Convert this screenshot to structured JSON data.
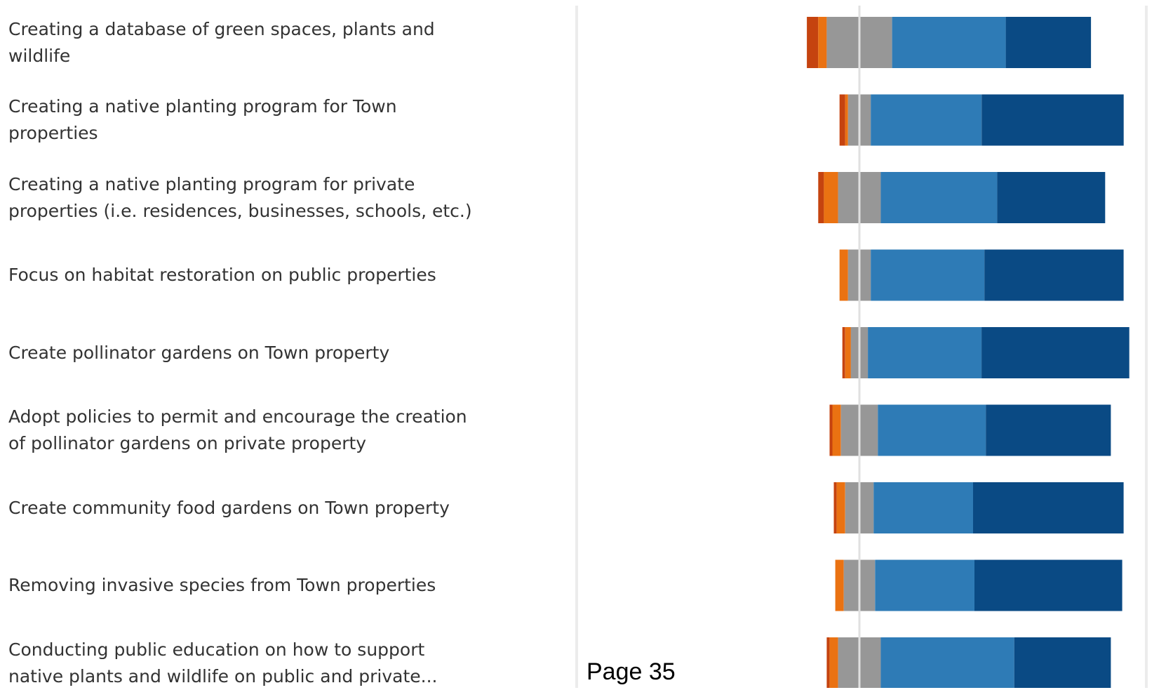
{
  "page": {
    "footer": "Page 35"
  },
  "chart_data": {
    "type": "bar",
    "orientation": "horizontal",
    "stacked": "diverging",
    "title": "",
    "xlabel": "",
    "ylabel": "",
    "grid": false,
    "legend": "none",
    "categories": [
      "Creating a database of green spaces, plants and wildlife",
      "Creating a native planting program for Town properties",
      "Creating a native planting program for private properties (i.e. residences, businesses, schools, etc.)",
      "Focus on habitat restoration on public properties",
      "Create pollinator gardens on Town property",
      "Adopt policies to permit and encourage the creation of pollinator gardens on private property",
      "Create community food gardens on Town property",
      "Removing invasive species from Town properties",
      "Conducting public education on how to support native plants and wildlife on public and private..."
    ],
    "series": [
      {
        "color": "#c5430f",
        "values": [
          4,
          2,
          2,
          0,
          1,
          1,
          1,
          0,
          1
        ]
      },
      {
        "color": "#ea7212",
        "values": [
          3,
          1,
          5,
          3,
          2,
          3,
          3,
          3,
          3
        ]
      },
      {
        "color": "#979797",
        "values": [
          23,
          8,
          15,
          8,
          6,
          13,
          10,
          11,
          15
        ]
      },
      {
        "color": "#2e7bb6",
        "values": [
          40,
          39,
          41,
          40,
          40,
          38,
          35,
          35,
          47
        ]
      },
      {
        "color": "#0a4a84",
        "values": [
          30,
          50,
          38,
          49,
          52,
          44,
          53,
          52,
          34
        ]
      }
    ]
  }
}
